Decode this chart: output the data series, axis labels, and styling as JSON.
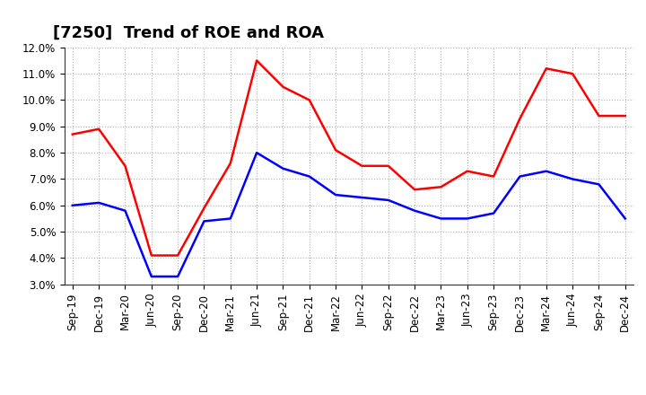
{
  "title": "[7250]  Trend of ROE and ROA",
  "labels": [
    "Sep-19",
    "Dec-19",
    "Mar-20",
    "Jun-20",
    "Sep-20",
    "Dec-20",
    "Mar-21",
    "Jun-21",
    "Sep-21",
    "Dec-21",
    "Mar-22",
    "Jun-22",
    "Sep-22",
    "Dec-22",
    "Mar-23",
    "Jun-23",
    "Sep-23",
    "Dec-23",
    "Mar-24",
    "Jun-24",
    "Sep-24",
    "Dec-24"
  ],
  "ROE": [
    8.7,
    8.9,
    7.5,
    4.1,
    4.1,
    5.9,
    7.6,
    11.5,
    10.5,
    10.0,
    8.1,
    7.5,
    7.5,
    6.6,
    6.7,
    7.3,
    7.1,
    9.3,
    11.2,
    11.0,
    9.4,
    9.4
  ],
  "ROA": [
    6.0,
    6.1,
    5.8,
    3.3,
    3.3,
    5.4,
    5.5,
    8.0,
    7.4,
    7.1,
    6.4,
    6.3,
    6.2,
    5.8,
    5.5,
    5.5,
    5.7,
    7.1,
    7.3,
    7.0,
    6.8,
    5.5
  ],
  "ROE_color": "#ff0000",
  "ROA_color": "#0000ff",
  "background_color": "#ffffff",
  "grid_color": "#b0b0b0",
  "ylim_min": 3.0,
  "ylim_max": 12.0,
  "ytick_step": 1.0,
  "title_fontsize": 13,
  "tick_fontsize": 8.5,
  "legend_fontsize": 10
}
